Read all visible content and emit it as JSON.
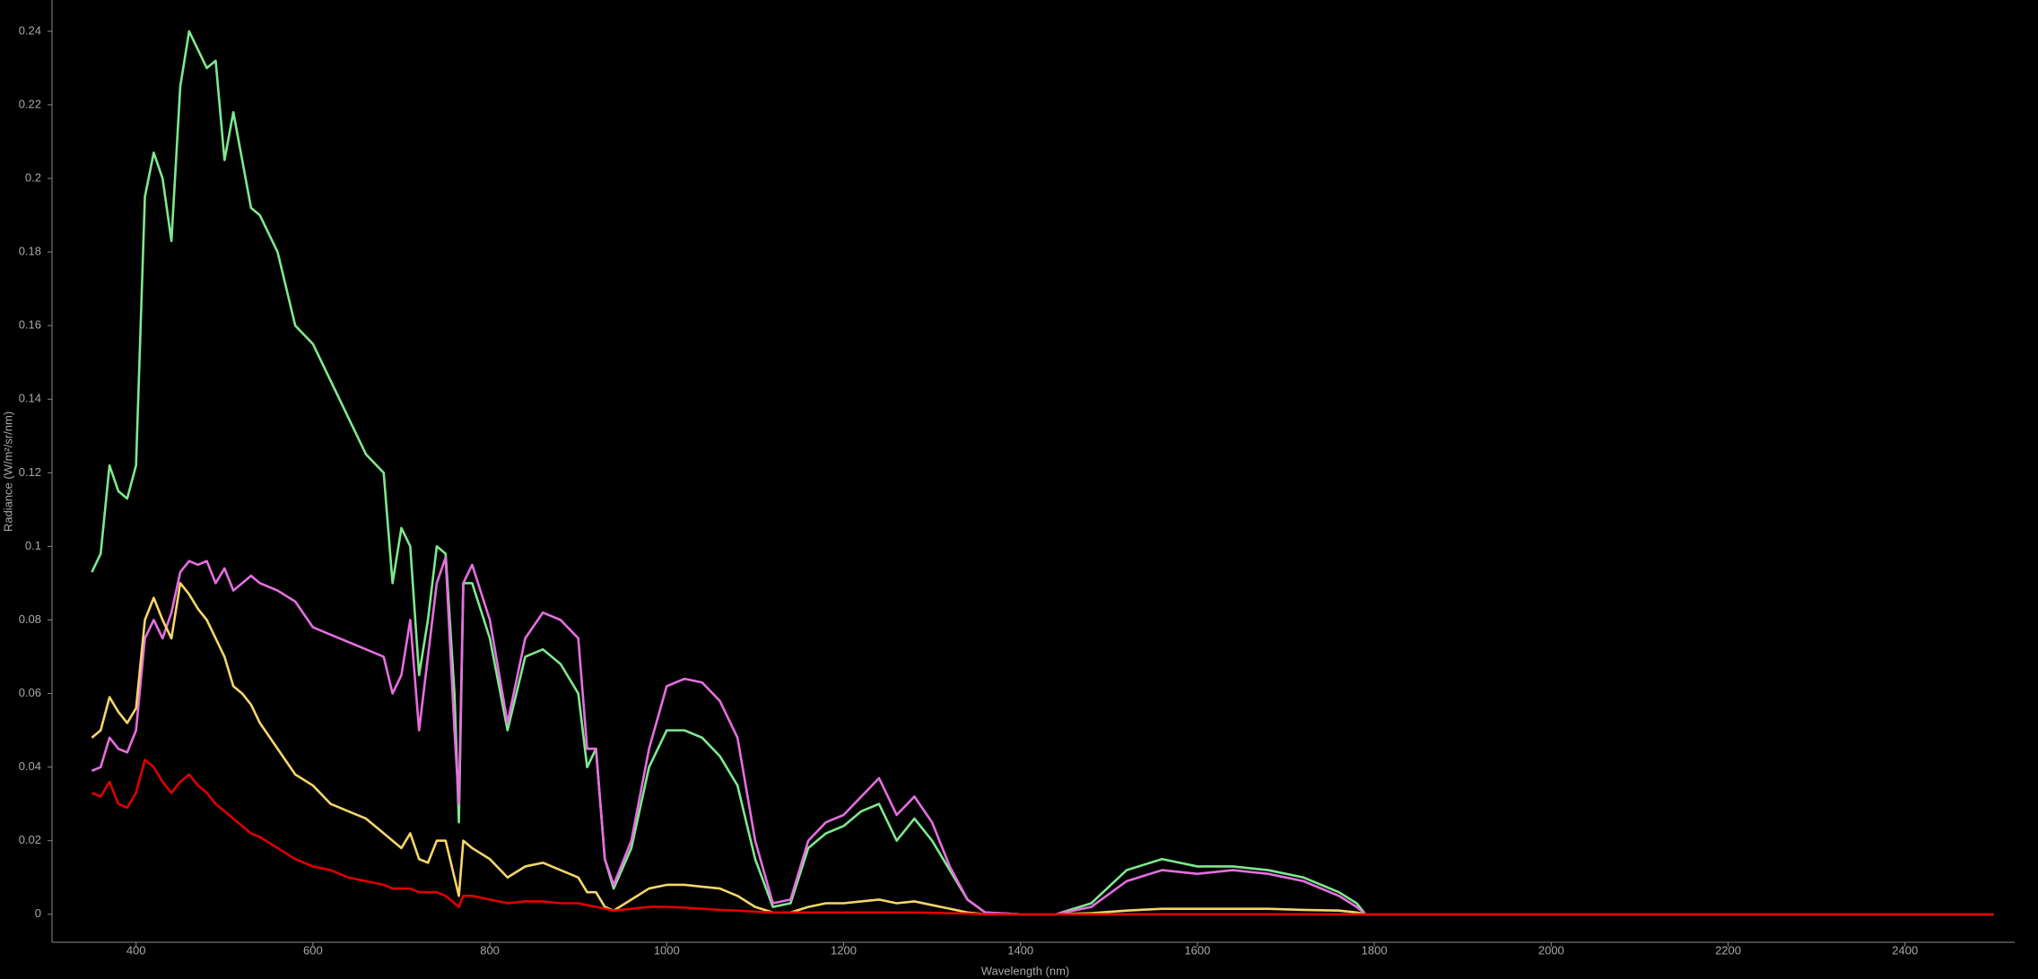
{
  "chart_data": {
    "type": "line",
    "xlabel": "Wavelength (nm)",
    "ylabel": "Radiance (W/m²/sr/nm)",
    "xlim": [
      305,
      2524
    ],
    "ylim": [
      -0.0076,
      0.2485
    ],
    "xticks": [
      400,
      600,
      800,
      1000,
      1200,
      1400,
      1600,
      1800,
      2000,
      2200,
      2400
    ],
    "yticks": [
      0,
      0.02,
      0.04,
      0.06,
      0.08,
      0.1,
      0.12,
      0.14,
      0.16,
      0.18,
      0.2,
      0.22,
      0.24
    ],
    "grid": false,
    "x": [
      350,
      360,
      370,
      380,
      390,
      400,
      410,
      420,
      430,
      440,
      450,
      460,
      470,
      480,
      490,
      500,
      510,
      520,
      530,
      540,
      560,
      580,
      600,
      620,
      640,
      660,
      680,
      690,
      700,
      710,
      720,
      730,
      740,
      750,
      760,
      765,
      770,
      780,
      800,
      820,
      840,
      860,
      880,
      900,
      910,
      920,
      930,
      940,
      960,
      980,
      1000,
      1020,
      1040,
      1060,
      1080,
      1100,
      1120,
      1140,
      1160,
      1180,
      1200,
      1220,
      1240,
      1260,
      1280,
      1300,
      1320,
      1340,
      1360,
      1400,
      1440,
      1480,
      1520,
      1560,
      1600,
      1640,
      1680,
      1720,
      1760,
      1780,
      1790,
      2000,
      2500
    ],
    "series": [
      {
        "color": "#7ee88e",
        "values": [
          0.093,
          0.098,
          0.122,
          0.115,
          0.113,
          0.122,
          0.195,
          0.207,
          0.2,
          0.183,
          0.225,
          0.24,
          0.235,
          0.23,
          0.232,
          0.205,
          0.218,
          0.205,
          0.192,
          0.19,
          0.18,
          0.16,
          0.155,
          0.145,
          0.135,
          0.125,
          0.12,
          0.09,
          0.105,
          0.1,
          0.065,
          0.08,
          0.1,
          0.098,
          0.06,
          0.025,
          0.09,
          0.09,
          0.075,
          0.05,
          0.07,
          0.072,
          0.068,
          0.06,
          0.04,
          0.045,
          0.015,
          0.007,
          0.018,
          0.04,
          0.05,
          0.05,
          0.048,
          0.043,
          0.035,
          0.015,
          0.002,
          0.003,
          0.018,
          0.022,
          0.024,
          0.028,
          0.03,
          0.02,
          0.026,
          0.02,
          0.012,
          0.004,
          0.0005,
          0,
          0,
          0.003,
          0.012,
          0.015,
          0.013,
          0.013,
          0.012,
          0.01,
          0.006,
          0.003,
          0,
          0,
          0
        ]
      },
      {
        "color": "#e66ee0",
        "values": [
          0.039,
          0.04,
          0.048,
          0.045,
          0.044,
          0.05,
          0.075,
          0.08,
          0.075,
          0.082,
          0.093,
          0.096,
          0.095,
          0.096,
          0.09,
          0.094,
          0.088,
          0.09,
          0.092,
          0.09,
          0.088,
          0.085,
          0.078,
          0.076,
          0.074,
          0.072,
          0.07,
          0.06,
          0.065,
          0.08,
          0.05,
          0.07,
          0.09,
          0.097,
          0.05,
          0.03,
          0.09,
          0.095,
          0.08,
          0.052,
          0.075,
          0.082,
          0.08,
          0.075,
          0.045,
          0.045,
          0.015,
          0.008,
          0.02,
          0.045,
          0.062,
          0.064,
          0.063,
          0.058,
          0.048,
          0.02,
          0.003,
          0.004,
          0.02,
          0.025,
          0.027,
          0.032,
          0.037,
          0.027,
          0.032,
          0.025,
          0.013,
          0.004,
          0.0005,
          0,
          0,
          0.002,
          0.009,
          0.012,
          0.011,
          0.012,
          0.011,
          0.009,
          0.005,
          0.002,
          0,
          0,
          0
        ]
      },
      {
        "color": "#f5d66a",
        "values": [
          0.048,
          0.05,
          0.059,
          0.055,
          0.052,
          0.056,
          0.08,
          0.086,
          0.08,
          0.075,
          0.09,
          0.087,
          0.083,
          0.08,
          0.075,
          0.07,
          0.062,
          0.06,
          0.057,
          0.052,
          0.045,
          0.038,
          0.035,
          0.03,
          0.028,
          0.026,
          0.022,
          0.02,
          0.018,
          0.022,
          0.015,
          0.014,
          0.02,
          0.02,
          0.01,
          0.005,
          0.02,
          0.018,
          0.015,
          0.01,
          0.013,
          0.014,
          0.012,
          0.01,
          0.006,
          0.006,
          0.002,
          0.001,
          0.004,
          0.007,
          0.008,
          0.008,
          0.0075,
          0.007,
          0.005,
          0.002,
          0.0005,
          0.0005,
          0.002,
          0.003,
          0.003,
          0.0035,
          0.004,
          0.003,
          0.0035,
          0.0025,
          0.0015,
          0.0005,
          0,
          0,
          0,
          0.0003,
          0.001,
          0.0015,
          0.0015,
          0.0015,
          0.0015,
          0.0012,
          0.001,
          0.0005,
          0,
          0,
          0
        ]
      },
      {
        "color": "#e00000",
        "values": [
          0.033,
          0.032,
          0.036,
          0.03,
          0.029,
          0.033,
          0.042,
          0.04,
          0.036,
          0.033,
          0.036,
          0.038,
          0.035,
          0.033,
          0.03,
          0.028,
          0.026,
          0.024,
          0.022,
          0.021,
          0.018,
          0.015,
          0.013,
          0.012,
          0.01,
          0.009,
          0.008,
          0.007,
          0.007,
          0.007,
          0.006,
          0.006,
          0.006,
          0.005,
          0.003,
          0.002,
          0.005,
          0.005,
          0.004,
          0.003,
          0.0035,
          0.0035,
          0.003,
          0.003,
          0.0025,
          0.002,
          0.0015,
          0.001,
          0.0015,
          0.002,
          0.002,
          0.0018,
          0.0015,
          0.0012,
          0.001,
          0.0007,
          0.0005,
          0.0005,
          0.0005,
          0.0005,
          0.0005,
          0.0005,
          0.0005,
          0.0005,
          0.0005,
          0.0004,
          0.0003,
          0.0002,
          0,
          0,
          0,
          0,
          0,
          0,
          0,
          0,
          0,
          0,
          0,
          0,
          0,
          0,
          0
        ]
      }
    ]
  }
}
